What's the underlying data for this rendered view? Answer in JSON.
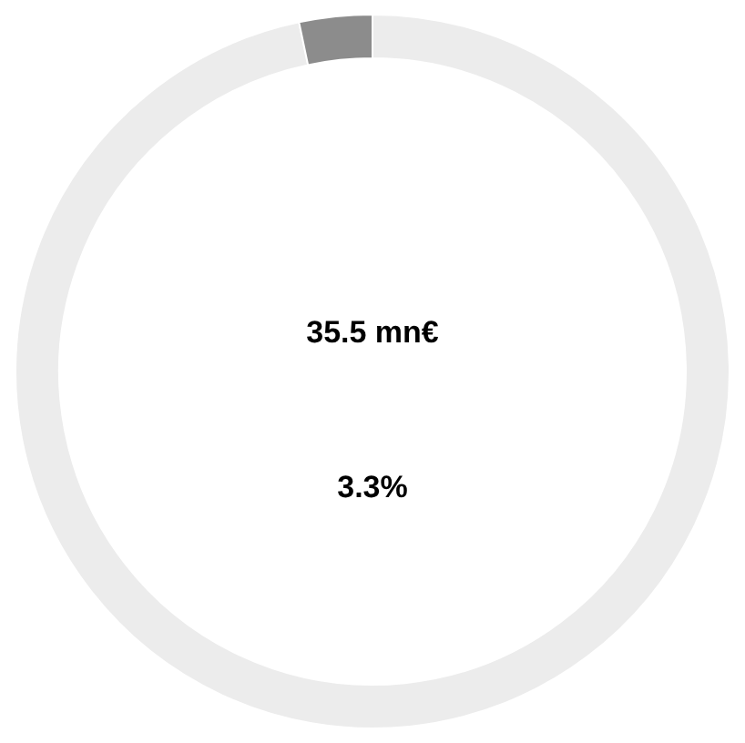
{
  "chart_data": {
    "type": "donut",
    "categories": [
      null,
      null
    ],
    "values": [
      96.7,
      3.3
    ],
    "colors": [
      "#ececec",
      "#8c8c8c"
    ],
    "annotations": [
      "35.5 mn€",
      "3.3%"
    ],
    "legend": false
  }
}
